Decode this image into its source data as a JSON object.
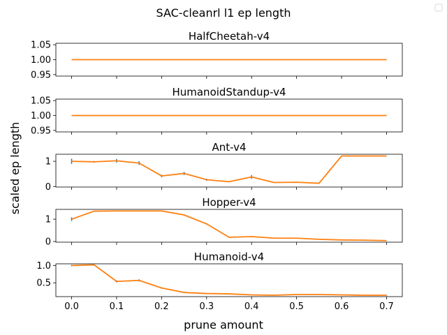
{
  "figure": {
    "suptitle": "SAC-cleanrl l1 ep length",
    "ylabel": "scaled ep length",
    "xlabel": "prune amount"
  },
  "x_ticks": [
    "0.0",
    "0.1",
    "0.2",
    "0.3",
    "0.4",
    "0.5",
    "0.6",
    "0.7"
  ],
  "line_color": "#ff7f0e",
  "err_color": "#1f77b4",
  "chart_data": [
    {
      "type": "line",
      "title": "HalfCheetah-v4",
      "x": [
        0.0,
        0.05,
        0.1,
        0.15,
        0.2,
        0.25,
        0.3,
        0.35,
        0.4,
        0.45,
        0.5,
        0.55,
        0.6,
        0.65,
        0.7
      ],
      "y": [
        1.0,
        1.0,
        1.0,
        1.0,
        1.0,
        1.0,
        1.0,
        1.0,
        1.0,
        1.0,
        1.0,
        1.0,
        1.0,
        1.0,
        1.0
      ],
      "err": [
        0,
        0,
        0,
        0,
        0,
        0,
        0,
        0,
        0,
        0,
        0,
        0,
        0,
        0,
        0
      ],
      "ylim": [
        0.945,
        1.055
      ],
      "yticks": [
        0.95,
        1.0,
        1.05
      ],
      "ytick_labels": [
        "0.95",
        "1.00",
        "1.05"
      ]
    },
    {
      "type": "line",
      "title": "HumanoidStandup-v4",
      "x": [
        0.0,
        0.05,
        0.1,
        0.15,
        0.2,
        0.25,
        0.3,
        0.35,
        0.4,
        0.45,
        0.5,
        0.55,
        0.6,
        0.65,
        0.7
      ],
      "y": [
        1.0,
        1.0,
        1.0,
        1.0,
        1.0,
        1.0,
        1.0,
        1.0,
        1.0,
        1.0,
        1.0,
        1.0,
        1.0,
        1.0,
        1.0
      ],
      "err": [
        0,
        0,
        0,
        0,
        0,
        0,
        0,
        0,
        0,
        0,
        0,
        0,
        0,
        0,
        0
      ],
      "ylim": [
        0.945,
        1.055
      ],
      "yticks": [
        0.95,
        1.0,
        1.05
      ],
      "ytick_labels": [
        "0.95",
        "1.00",
        "1.05"
      ]
    },
    {
      "type": "line",
      "title": "Ant-v4",
      "x": [
        0.0,
        0.05,
        0.1,
        0.15,
        0.2,
        0.25,
        0.3,
        0.35,
        0.4,
        0.45,
        0.5,
        0.55,
        0.6,
        0.65,
        0.7
      ],
      "y": [
        1.0,
        0.98,
        1.02,
        0.93,
        0.42,
        0.52,
        0.27,
        0.19,
        0.38,
        0.16,
        0.17,
        0.13,
        1.21,
        1.21,
        1.21
      ],
      "err": [
        0.1,
        0.03,
        0.07,
        0.07,
        0.05,
        0.06,
        0.04,
        0.02,
        0.07,
        0.01,
        0.02,
        0.01,
        0.0,
        0.0,
        0.0
      ],
      "ylim": [
        -0.02,
        1.28
      ],
      "yticks": [
        0,
        1
      ],
      "ytick_labels": [
        "0",
        "1"
      ]
    },
    {
      "type": "line",
      "title": "Hopper-v4",
      "x": [
        0.0,
        0.05,
        0.1,
        0.15,
        0.2,
        0.25,
        0.3,
        0.35,
        0.4,
        0.45,
        0.5,
        0.55,
        0.6,
        0.65,
        0.7
      ],
      "y": [
        1.0,
        1.36,
        1.37,
        1.37,
        1.37,
        1.19,
        0.79,
        0.19,
        0.22,
        0.15,
        0.15,
        0.1,
        0.07,
        0.06,
        0.04
      ],
      "err": [
        0.08,
        0.02,
        0.0,
        0.0,
        0.02,
        0.03,
        0.03,
        0.01,
        0.01,
        0.01,
        0.01,
        0.0,
        0.0,
        0.0,
        0.0
      ],
      "ylim": [
        -0.03,
        1.44
      ],
      "yticks": [
        0,
        1
      ],
      "ytick_labels": [
        "0",
        "1"
      ]
    },
    {
      "type": "line",
      "title": "Humanoid-v4",
      "x": [
        0.0,
        0.05,
        0.1,
        0.15,
        0.2,
        0.25,
        0.3,
        0.35,
        0.4,
        0.45,
        0.5,
        0.55,
        0.6,
        0.65,
        0.7
      ],
      "y": [
        1.0,
        1.02,
        0.54,
        0.57,
        0.35,
        0.22,
        0.19,
        0.18,
        0.15,
        0.14,
        0.16,
        0.16,
        0.15,
        0.14,
        0.14
      ],
      "err": [
        0.02,
        0.01,
        0.03,
        0.03,
        0.02,
        0.01,
        0.01,
        0.01,
        0.01,
        0.01,
        0.01,
        0.01,
        0.01,
        0.01,
        0.01
      ],
      "ylim": [
        0.1,
        1.05
      ],
      "yticks": [
        0.5,
        1.0
      ],
      "ytick_labels": [
        "0.5",
        "1.0"
      ]
    }
  ]
}
